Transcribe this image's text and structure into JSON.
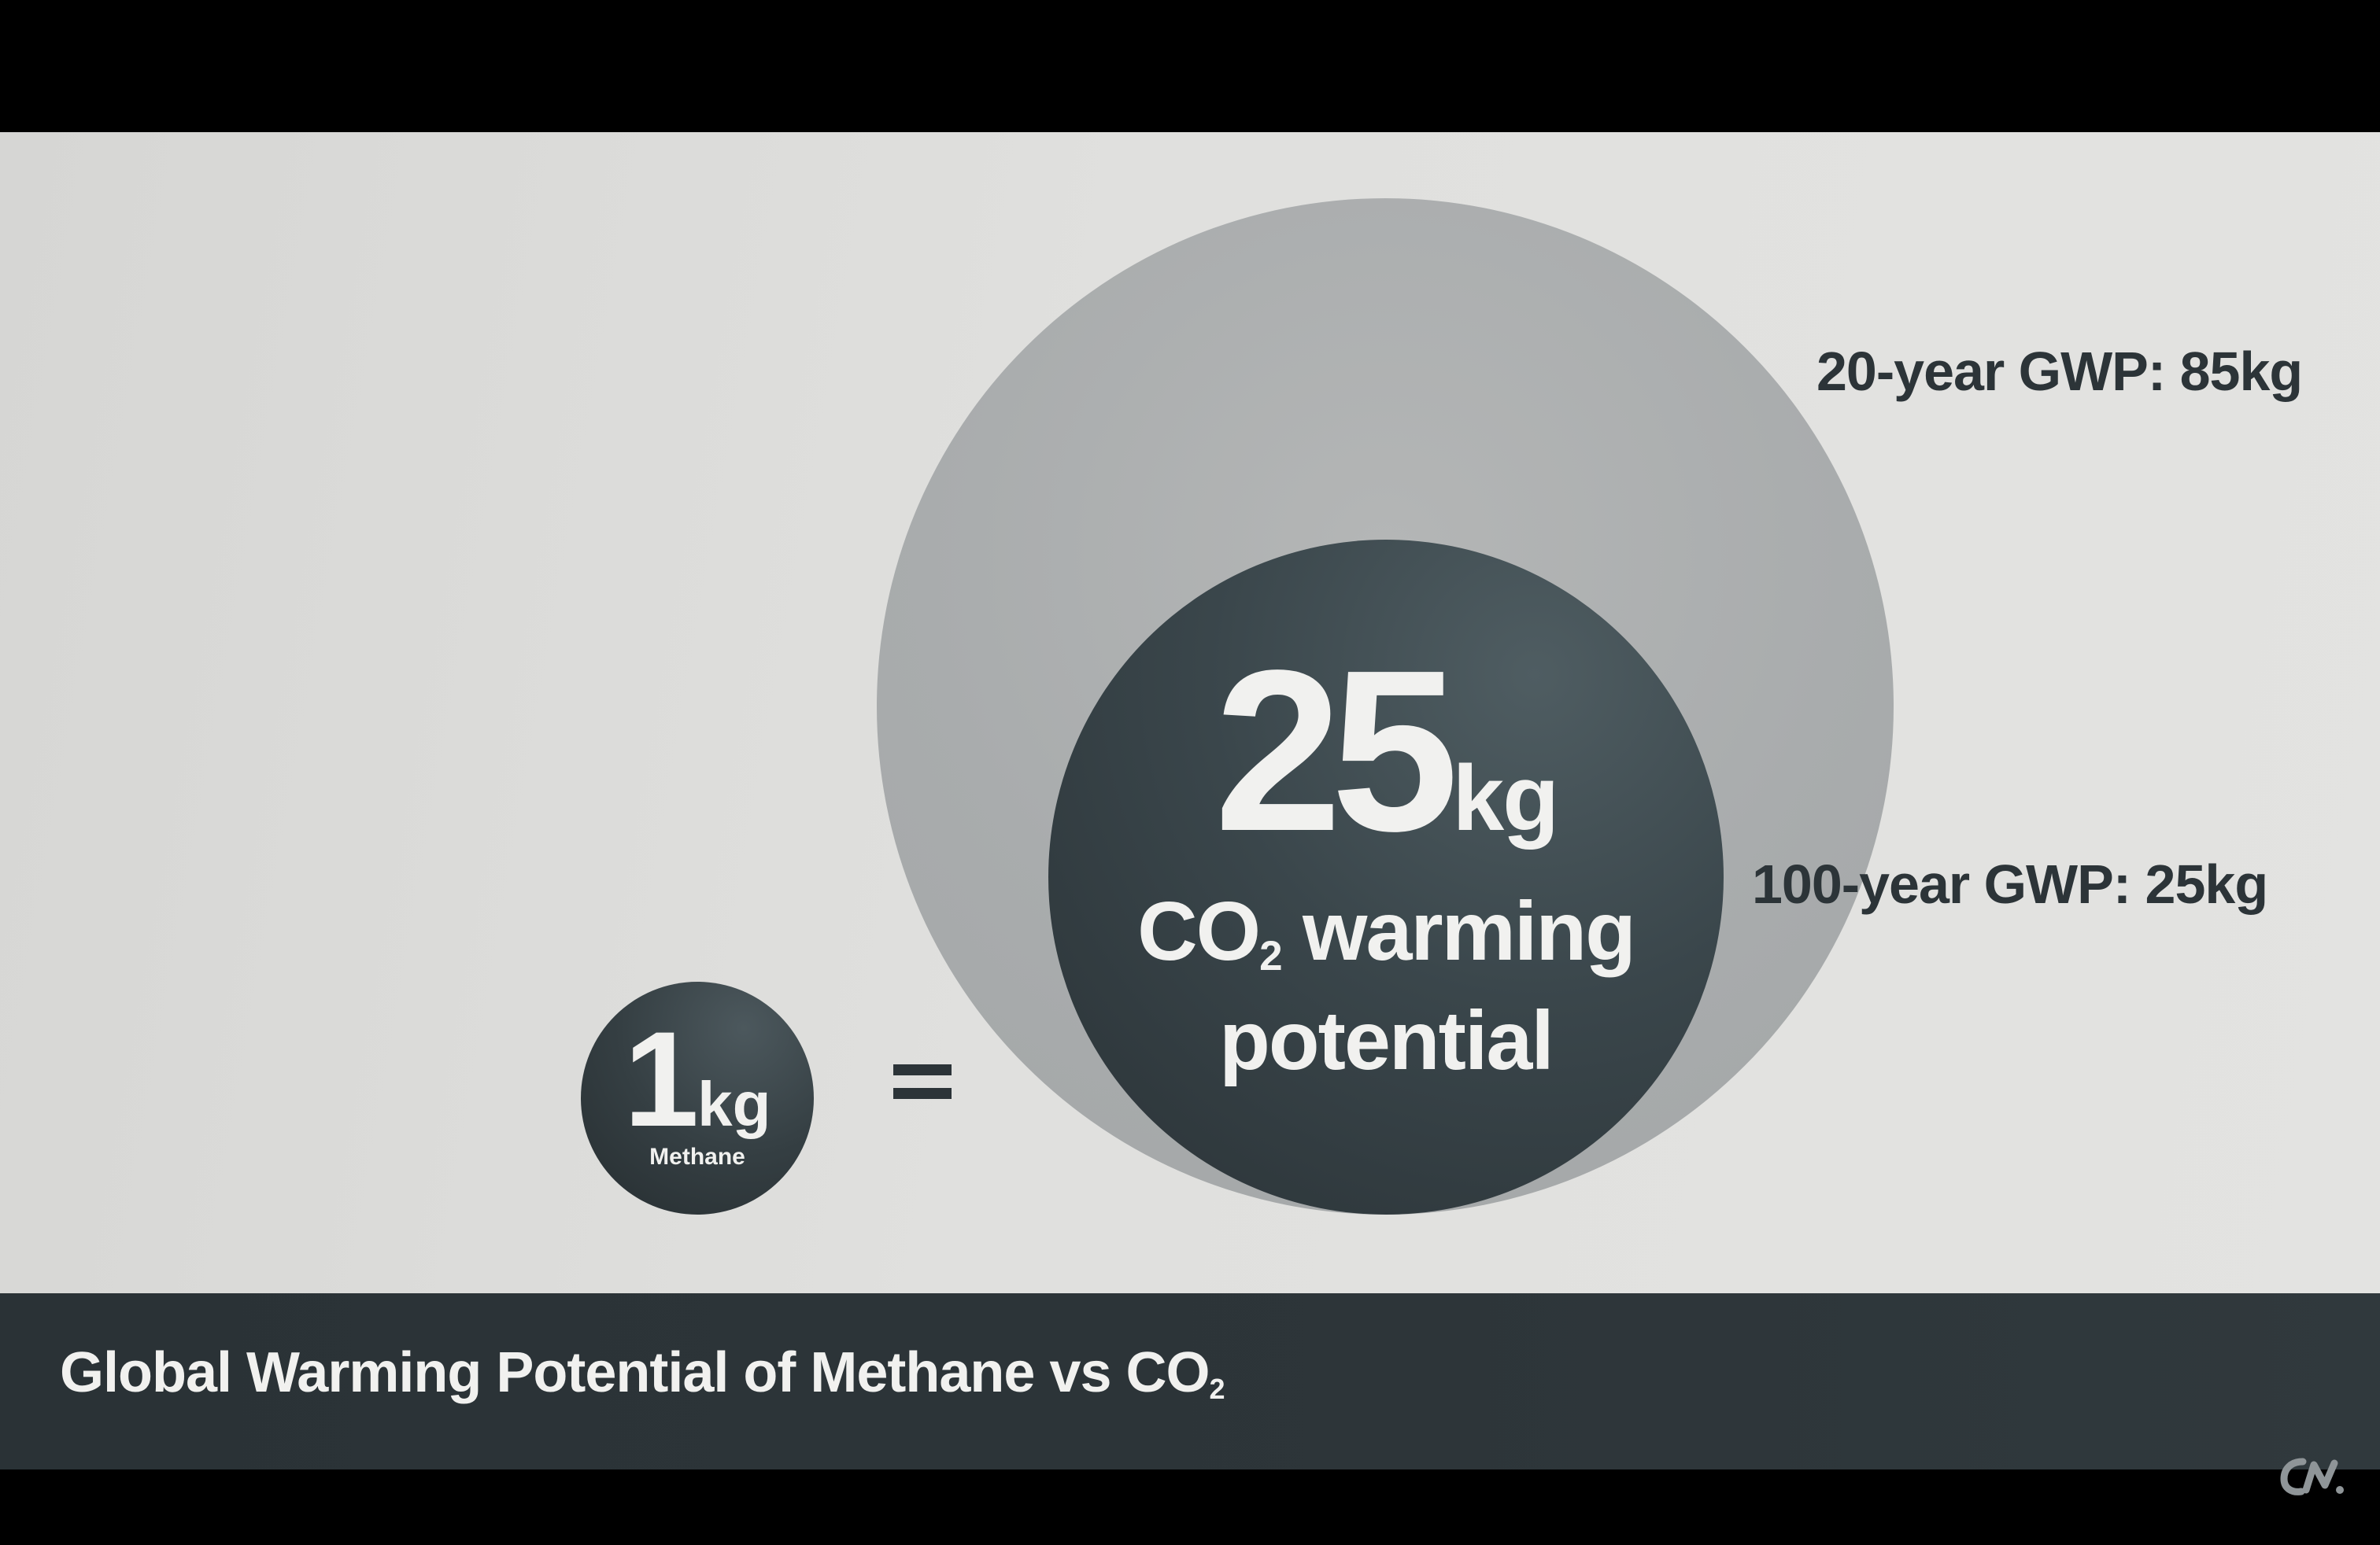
{
  "co2_equivalent": {
    "value": "25",
    "unit": "kg",
    "caption_prefix": "CO",
    "caption_sub": "2",
    "caption_line1_rest": " warming",
    "caption_line2": "potential"
  },
  "methane": {
    "value": "1",
    "unit": "kg",
    "label": "Methane"
  },
  "equals_sign": "=",
  "gwp_labels": {
    "twenty_year": "20-year GWP: 85kg",
    "hundred_year": "100-year GWP: 25kg"
  },
  "footer": {
    "title": "Global Warming Potential of Methane vs CO",
    "title_sub": "2"
  },
  "colors": {
    "outer_circle": "#a9acad",
    "inner_circle": "#3a464b",
    "footer_band": "#2c3438",
    "text_light": "#f1f1ef",
    "text_dark": "#2c3438"
  },
  "logo_icon": "cnbc-style-logo-icon"
}
